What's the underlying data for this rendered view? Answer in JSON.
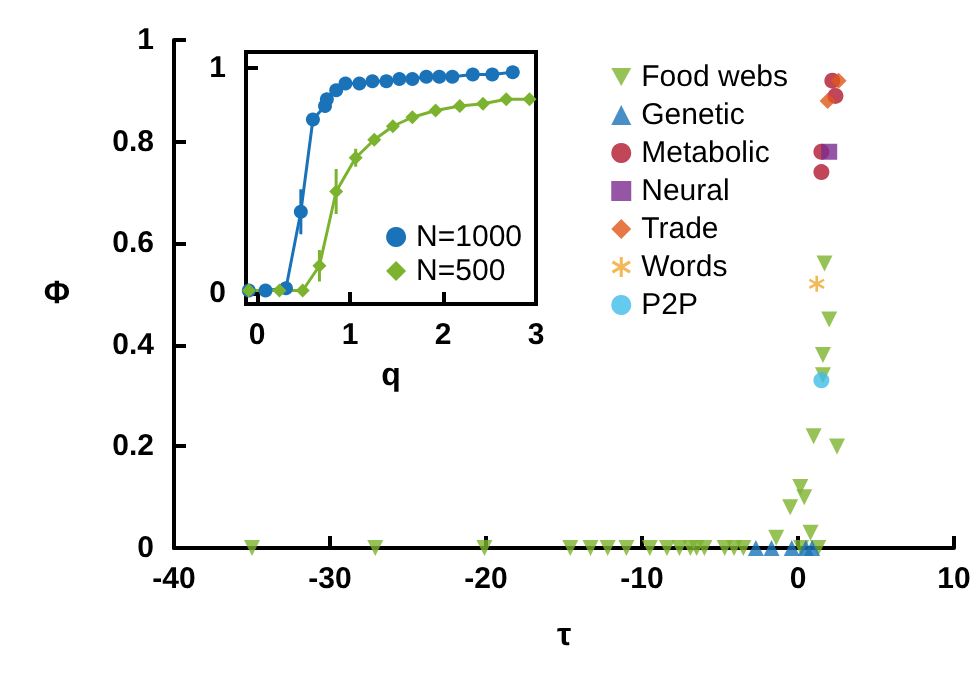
{
  "chart_data": [
    {
      "type": "scatter",
      "xlabel": "τ",
      "ylabel": "Φ",
      "xlim": [
        -40,
        10
      ],
      "ylim": [
        0,
        1
      ],
      "xticks": [
        -40,
        -30,
        -20,
        -10,
        0,
        10
      ],
      "yticks": [
        0,
        0.2,
        0.4,
        0.6,
        0.8,
        1
      ],
      "grid": false,
      "legend": "top right",
      "series": [
        {
          "name": "Food webs",
          "color": "#7cb32e",
          "marker": "triangle-down",
          "x": [
            -35,
            -27.1,
            -20.1,
            -14.6,
            -13.3,
            -12.2,
            -11,
            -9.5,
            -8.4,
            -7.6,
            -6.9,
            -6.5,
            -6,
            -4.7,
            -4.1,
            -3.5,
            0.2,
            1.3,
            1.7,
            2,
            1.6,
            1.6,
            1,
            2.5,
            0.15,
            0.4,
            -0.5,
            -1.4,
            0.8
          ],
          "values": [
            0,
            0,
            0,
            0,
            0,
            0,
            0,
            0,
            0,
            0,
            0,
            0,
            0,
            0,
            0,
            0,
            0,
            0,
            0.56,
            0.45,
            0.38,
            0.34,
            0.22,
            0.2,
            0.12,
            0.1,
            0.08,
            0.02,
            0.03
          ]
        },
        {
          "name": "Genetic",
          "color": "#1a73b8",
          "marker": "triangle",
          "x": [
            -2.7,
            -1.7,
            -0.4,
            0.5,
            0.9
          ],
          "values": [
            0,
            0,
            0,
            0,
            0
          ]
        },
        {
          "name": "Metabolic",
          "color": "#b0182e",
          "marker": "circle",
          "x": [
            2.2,
            2.4,
            1.5,
            1.5
          ],
          "values": [
            0.92,
            0.89,
            0.78,
            0.74
          ]
        },
        {
          "name": "Neural",
          "color": "#7a2d8f",
          "marker": "square",
          "x": [
            2
          ],
          "values": [
            0.78
          ]
        },
        {
          "name": "Trade",
          "color": "#e0561a",
          "marker": "diamond",
          "x": [
            2.6,
            1.9
          ],
          "values": [
            0.92,
            0.88
          ]
        },
        {
          "name": "Words",
          "color": "#f0a830",
          "marker": "star",
          "x": [
            1.2
          ],
          "values": [
            0.52
          ]
        },
        {
          "name": "P2P",
          "color": "#3fbde8",
          "marker": "circle",
          "x": [
            1.5
          ],
          "values": [
            0.33
          ]
        }
      ]
    },
    {
      "type": "line",
      "xlabel": "q",
      "xlim": [
        -0.12,
        3
      ],
      "ylim": [
        -0.05,
        1.07
      ],
      "xticks": [
        0,
        1,
        2,
        3
      ],
      "yticks": [
        0,
        1
      ],
      "grid": false,
      "legend": "bottom right",
      "line_style": "solid",
      "series": [
        {
          "name": "N=1000",
          "color": "#1a73b8",
          "marker": "circle",
          "x": [
            -0.09,
            0.09,
            0.31,
            0.47,
            0.6,
            0.73,
            0.75,
            0.85,
            0.95,
            1.1,
            1.24,
            1.39,
            1.53,
            1.67,
            1.82,
            1.96,
            2.1,
            2.32,
            2.53,
            2.75
          ],
          "values": [
            0.01,
            0.01,
            0.02,
            0.36,
            0.77,
            0.83,
            0.86,
            0.9,
            0.93,
            0.93,
            0.94,
            0.94,
            0.95,
            0.95,
            0.96,
            0.96,
            0.96,
            0.97,
            0.97,
            0.98
          ],
          "errors": [
            null,
            null,
            null,
            0.1,
            null,
            null,
            null,
            null,
            null,
            null,
            null,
            null,
            null,
            null,
            null,
            null,
            null,
            null,
            null,
            null
          ]
        },
        {
          "name": "N=500",
          "color": "#7cb32e",
          "marker": "diamond",
          "x": [
            -0.09,
            0.24,
            0.49,
            0.67,
            0.85,
            1.06,
            1.26,
            1.46,
            1.67,
            1.92,
            2.18,
            2.43,
            2.68,
            2.93
          ],
          "values": [
            0.01,
            0.01,
            0.01,
            0.12,
            0.45,
            0.6,
            0.68,
            0.74,
            0.78,
            0.81,
            0.83,
            0.84,
            0.86,
            0.86
          ],
          "errors": [
            null,
            null,
            null,
            0.07,
            0.1,
            0.04,
            null,
            null,
            null,
            null,
            null,
            null,
            null,
            null
          ]
        }
      ]
    }
  ]
}
